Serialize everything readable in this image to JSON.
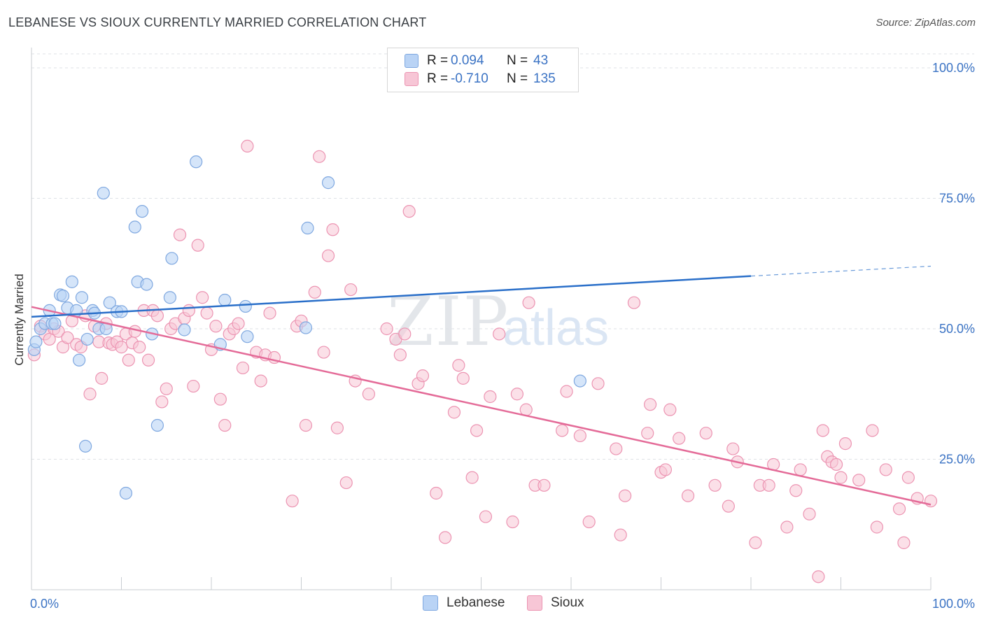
{
  "header": {
    "title": "LEBANESE VS SIOUX CURRENTLY MARRIED CORRELATION CHART",
    "source": "Source: ZipAtlas.com"
  },
  "watermark": {
    "zip": "ZIP",
    "atlas": "atlas"
  },
  "legend_box": {
    "rows": [
      {
        "r_label": "R =",
        "r_value": "0.094",
        "n_label": "N =",
        "n_value": "43"
      },
      {
        "r_label": "R =",
        "r_value": "-0.710",
        "n_label": "N =",
        "n_value": "135"
      }
    ]
  },
  "bottom_legend": {
    "lebanese": "Lebanese",
    "sioux": "Sioux"
  },
  "colors": {
    "lebanese_fill": "#b9d3f5",
    "lebanese_stroke": "#7fa8e0",
    "lebanese_line": "#2a6fc9",
    "sioux_fill": "#f7c6d6",
    "sioux_stroke": "#ec94b2",
    "sioux_line": "#e46b98",
    "tick_label": "#3b73c4"
  },
  "chart_data": {
    "type": "scatter",
    "title": "LEBANESE VS SIOUX CURRENTLY MARRIED CORRELATION CHART",
    "xlabel": "",
    "ylabel": "Currently Married",
    "xlim": [
      0,
      100
    ],
    "ylim": [
      0,
      100
    ],
    "x_tick_labels": [
      "0.0%",
      "100.0%"
    ],
    "y_ticks": [
      25,
      50,
      75,
      100
    ],
    "y_tick_labels": [
      "25.0%",
      "50.0%",
      "75.0%",
      "100.0%"
    ],
    "grid": true,
    "legend": "top-center",
    "series": [
      {
        "name": "Lebanese",
        "R": 0.094,
        "N": 43,
        "trend": {
          "x": [
            0,
            80
          ],
          "y": [
            52.3,
            60.1
          ],
          "dashed_to": [
            100,
            62.0
          ]
        },
        "points": [
          [
            0.3,
            46
          ],
          [
            0.5,
            47.5
          ],
          [
            1,
            50
          ],
          [
            1.5,
            51
          ],
          [
            2,
            53.5
          ],
          [
            2.3,
            51
          ],
          [
            2.6,
            51
          ],
          [
            3.2,
            56.5
          ],
          [
            3.5,
            56.3
          ],
          [
            4,
            54
          ],
          [
            4.5,
            59
          ],
          [
            5,
            53.5
          ],
          [
            5.3,
            44
          ],
          [
            5.6,
            56
          ],
          [
            6,
            27.5
          ],
          [
            6.2,
            48
          ],
          [
            6.8,
            53.5
          ],
          [
            7,
            53
          ],
          [
            7.5,
            50
          ],
          [
            8,
            76
          ],
          [
            8.3,
            50
          ],
          [
            8.7,
            55
          ],
          [
            9.5,
            53.3
          ],
          [
            10,
            53.3
          ],
          [
            10.5,
            18.5
          ],
          [
            11.5,
            69.5
          ],
          [
            11.8,
            59
          ],
          [
            12.3,
            72.5
          ],
          [
            12.8,
            58.5
          ],
          [
            13.4,
            49
          ],
          [
            14,
            31.5
          ],
          [
            15.4,
            56
          ],
          [
            15.6,
            63.5
          ],
          [
            17,
            49.8
          ],
          [
            18.3,
            82
          ],
          [
            21,
            47
          ],
          [
            21.5,
            55.5
          ],
          [
            23.8,
            54.3
          ],
          [
            24,
            48.5
          ],
          [
            30.5,
            50.2
          ],
          [
            30.7,
            69.3
          ],
          [
            33,
            78
          ],
          [
            61,
            40
          ]
        ]
      },
      {
        "name": "Sioux",
        "R": -0.71,
        "N": 135,
        "trend": {
          "x": [
            0,
            100
          ],
          "y": [
            54.2,
            16.3
          ]
        },
        "points": [
          [
            0.3,
            45
          ],
          [
            1,
            50.5
          ],
          [
            1.5,
            49
          ],
          [
            2,
            48
          ],
          [
            2.5,
            50
          ],
          [
            3,
            49.5
          ],
          [
            3.5,
            46.5
          ],
          [
            4,
            48.3
          ],
          [
            4.5,
            51.5
          ],
          [
            5,
            47
          ],
          [
            5.5,
            46.5
          ],
          [
            6,
            52.5
          ],
          [
            6.5,
            37.5
          ],
          [
            7,
            50.5
          ],
          [
            7.5,
            47.5
          ],
          [
            7.8,
            40.5
          ],
          [
            8.3,
            51
          ],
          [
            8.6,
            47.3
          ],
          [
            9,
            47
          ],
          [
            9.5,
            47.5
          ],
          [
            10,
            46.5
          ],
          [
            10.5,
            49
          ],
          [
            10.8,
            44
          ],
          [
            11.2,
            47.3
          ],
          [
            11.5,
            49.5
          ],
          [
            12,
            46.5
          ],
          [
            12.5,
            53.5
          ],
          [
            13,
            44
          ],
          [
            13.5,
            53.5
          ],
          [
            14,
            52.5
          ],
          [
            14.5,
            36
          ],
          [
            15,
            38.5
          ],
          [
            15.5,
            50
          ],
          [
            16,
            51
          ],
          [
            16.5,
            68
          ],
          [
            17,
            52
          ],
          [
            17.5,
            53.5
          ],
          [
            18,
            39
          ],
          [
            18.5,
            66
          ],
          [
            19,
            56
          ],
          [
            19.5,
            53
          ],
          [
            20,
            46
          ],
          [
            20.5,
            50.5
          ],
          [
            21,
            36.5
          ],
          [
            21.5,
            31.5
          ],
          [
            22,
            49
          ],
          [
            22.5,
            50
          ],
          [
            23,
            51
          ],
          [
            23.5,
            42.5
          ],
          [
            24,
            85
          ],
          [
            25,
            45.5
          ],
          [
            25.5,
            40
          ],
          [
            26,
            45
          ],
          [
            26.5,
            53
          ],
          [
            27,
            44.5
          ],
          [
            29,
            17
          ],
          [
            29.5,
            50.5
          ],
          [
            30,
            51.5
          ],
          [
            30.5,
            31.5
          ],
          [
            31.5,
            57
          ],
          [
            32,
            83
          ],
          [
            32.5,
            45.5
          ],
          [
            33,
            64
          ],
          [
            33.5,
            69
          ],
          [
            34,
            31
          ],
          [
            35,
            20.5
          ],
          [
            35.5,
            57.5
          ],
          [
            36,
            40
          ],
          [
            37.5,
            37.5
          ],
          [
            39.5,
            50
          ],
          [
            40.5,
            48
          ],
          [
            41,
            45
          ],
          [
            41.5,
            49
          ],
          [
            42,
            72.5
          ],
          [
            43,
            39.5
          ],
          [
            43.5,
            41
          ],
          [
            45,
            18.5
          ],
          [
            46,
            10
          ],
          [
            47,
            34
          ],
          [
            47.5,
            43
          ],
          [
            48,
            40.5
          ],
          [
            49,
            21.5
          ],
          [
            49.5,
            30.5
          ],
          [
            50.5,
            14
          ],
          [
            51,
            37
          ],
          [
            52,
            49
          ],
          [
            53.5,
            13
          ],
          [
            54,
            37.5
          ],
          [
            55,
            34.5
          ],
          [
            55.3,
            55
          ],
          [
            56,
            20
          ],
          [
            57,
            20
          ],
          [
            59,
            30.5
          ],
          [
            59.5,
            38
          ],
          [
            61,
            29.5
          ],
          [
            62,
            13
          ],
          [
            63,
            39.5
          ],
          [
            65,
            27
          ],
          [
            65.5,
            10.5
          ],
          [
            66,
            18
          ],
          [
            67,
            55
          ],
          [
            68.5,
            30
          ],
          [
            68.8,
            35.5
          ],
          [
            70,
            22.5
          ],
          [
            70.5,
            23
          ],
          [
            71,
            34.5
          ],
          [
            72,
            29
          ],
          [
            73,
            18
          ],
          [
            75,
            30
          ],
          [
            76,
            20
          ],
          [
            77.5,
            16
          ],
          [
            78,
            27
          ],
          [
            78.5,
            24.5
          ],
          [
            80.5,
            9
          ],
          [
            81,
            20
          ],
          [
            82,
            20
          ],
          [
            82.5,
            24
          ],
          [
            84,
            12
          ],
          [
            85,
            19
          ],
          [
            85.5,
            23
          ],
          [
            86.5,
            14.5
          ],
          [
            87.5,
            2.5
          ],
          [
            88,
            30.5
          ],
          [
            88.5,
            25.5
          ],
          [
            89,
            24.5
          ],
          [
            89.5,
            24
          ],
          [
            90,
            21.5
          ],
          [
            90.5,
            28
          ],
          [
            92,
            21
          ],
          [
            93.5,
            30.5
          ],
          [
            94,
            12
          ],
          [
            95,
            23
          ],
          [
            96.5,
            15.5
          ],
          [
            97,
            9
          ],
          [
            97.5,
            21.5
          ],
          [
            98.5,
            17.5
          ],
          [
            100,
            17
          ]
        ]
      }
    ]
  }
}
